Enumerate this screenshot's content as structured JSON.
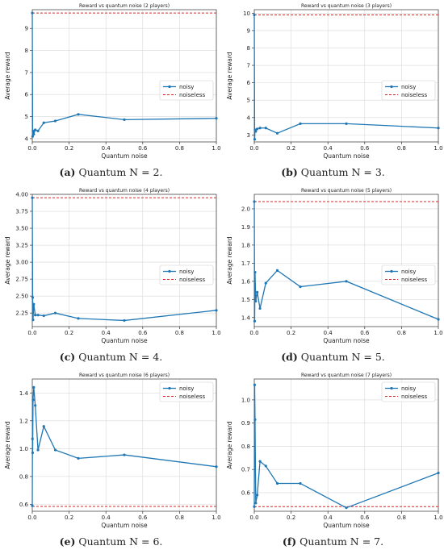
{
  "chart_data": [
    {
      "type": "line",
      "title": "Reward vs quantum noise (2 players)",
      "xlabel": "Quantum noise",
      "ylabel": "Average reward",
      "xlim": [
        0.0,
        1.0
      ],
      "ylim": [
        3.85,
        9.85
      ],
      "xticks": [
        0.0,
        0.2,
        0.4,
        0.6,
        0.8,
        1.0
      ],
      "xtick_labels": [
        "0.0",
        "0.2",
        "0.4",
        "0.6",
        "0.8",
        "1.0"
      ],
      "yticks": [
        4,
        5,
        6,
        7,
        8,
        9
      ],
      "ytick_labels": [
        "4",
        "5",
        "6",
        "7",
        "8",
        "9"
      ],
      "grid": true,
      "legend_position": "right",
      "series": [
        {
          "name": "noisy",
          "color": "#1f77b4",
          "x": [
            0.0,
            0.002,
            0.004,
            0.008,
            0.016,
            0.031,
            0.0625,
            0.125,
            0.25,
            0.5,
            1.0
          ],
          "y": [
            9.7,
            4.1,
            4.35,
            4.2,
            4.4,
            4.35,
            4.72,
            4.8,
            5.1,
            4.86,
            4.92
          ]
        },
        {
          "name": "noiseless",
          "color": "#d62728",
          "dashed": true,
          "hline": 9.7
        }
      ],
      "caption_label": "(a)",
      "caption_text": " Quantum N = 2."
    },
    {
      "type": "line",
      "title": "Reward vs quantum noise (3 players)",
      "xlabel": "Quantum noise",
      "ylabel": "Average reward",
      "xlim": [
        0.0,
        1.0
      ],
      "ylim": [
        2.6,
        10.2
      ],
      "xticks": [
        0.0,
        0.2,
        0.4,
        0.6,
        0.8,
        1.0
      ],
      "xtick_labels": [
        "0.0",
        "0.2",
        "0.4",
        "0.6",
        "0.8",
        "1.0"
      ],
      "yticks": [
        3,
        4,
        5,
        6,
        7,
        8,
        9,
        10
      ],
      "ytick_labels": [
        "3",
        "4",
        "5",
        "6",
        "7",
        "8",
        "9",
        "10"
      ],
      "grid": true,
      "legend_position": "right",
      "series": [
        {
          "name": "noisy",
          "color": "#1f77b4",
          "x": [
            0.0,
            0.002,
            0.004,
            0.008,
            0.016,
            0.031,
            0.0625,
            0.125,
            0.25,
            0.5,
            1.0
          ],
          "y": [
            9.9,
            2.75,
            3.3,
            3.2,
            3.35,
            3.4,
            3.4,
            3.1,
            3.65,
            3.65,
            3.4
          ]
        },
        {
          "name": "noiseless",
          "color": "#d62728",
          "dashed": true,
          "hline": 9.9
        }
      ],
      "caption_label": "(b)",
      "caption_text": " Quantum N = 3."
    },
    {
      "type": "line",
      "title": "Reward vs quantum noise (4 players)",
      "xlabel": "Quantum noise",
      "ylabel": "Average reward",
      "xlim": [
        0.0,
        1.0
      ],
      "ylim": [
        2.05,
        4.0
      ],
      "xticks": [
        0.0,
        0.2,
        0.4,
        0.6,
        0.8,
        1.0
      ],
      "xtick_labels": [
        "0.0",
        "0.2",
        "0.4",
        "0.6",
        "0.8",
        "1.0"
      ],
      "yticks": [
        2.25,
        2.5,
        2.75,
        3.0,
        3.25,
        3.5,
        3.75,
        4.0
      ],
      "ytick_labels": [
        "2.25",
        "2.50",
        "2.75",
        "3.00",
        "3.25",
        "3.50",
        "3.75",
        "4.00"
      ],
      "grid": true,
      "legend_position": "right",
      "series": [
        {
          "name": "noisy",
          "color": "#1f77b4",
          "x": [
            0.0,
            0.002,
            0.004,
            0.008,
            0.016,
            0.031,
            0.0625,
            0.125,
            0.25,
            0.5,
            1.0
          ],
          "y": [
            3.95,
            2.48,
            2.15,
            2.38,
            2.22,
            2.22,
            2.21,
            2.25,
            2.17,
            2.14,
            2.29
          ]
        },
        {
          "name": "noiseless",
          "color": "#d62728",
          "dashed": true,
          "hline": 3.95
        }
      ],
      "caption_label": "(c)",
      "caption_text": " Quantum N = 4."
    },
    {
      "type": "line",
      "title": "Reward vs quantum noise (5 players)",
      "xlabel": "Quantum noise",
      "ylabel": "Average reward",
      "xlim": [
        0.0,
        1.0
      ],
      "ylim": [
        1.35,
        2.08
      ],
      "xticks": [
        0.0,
        0.2,
        0.4,
        0.6,
        0.8,
        1.0
      ],
      "xtick_labels": [
        "0.0",
        "0.2",
        "0.4",
        "0.6",
        "0.8",
        "1.0"
      ],
      "yticks": [
        1.4,
        1.5,
        1.6,
        1.7,
        1.8,
        1.9,
        2.0
      ],
      "ytick_labels": [
        "1.4",
        "1.5",
        "1.6",
        "1.7",
        "1.8",
        "1.9",
        "2.0"
      ],
      "grid": true,
      "legend_position": "right",
      "series": [
        {
          "name": "noisy",
          "color": "#1f77b4",
          "x": [
            0.0,
            0.002,
            0.004,
            0.008,
            0.016,
            0.031,
            0.0625,
            0.125,
            0.25,
            0.5,
            1.0
          ],
          "y": [
            2.04,
            1.38,
            1.65,
            1.49,
            1.54,
            1.45,
            1.59,
            1.66,
            1.57,
            1.6,
            1.39
          ]
        },
        {
          "name": "noiseless",
          "color": "#d62728",
          "dashed": true,
          "hline": 2.04
        }
      ],
      "caption_label": "(d)",
      "caption_text": " Quantum N = 5."
    },
    {
      "type": "line",
      "title": "Reward vs quantum noise (6 players)",
      "xlabel": "Quantum noise",
      "ylabel": "Average reward",
      "xlim": [
        0.0,
        1.0
      ],
      "ylim": [
        0.55,
        1.5
      ],
      "xticks": [
        0.0,
        0.2,
        0.4,
        0.6,
        0.8,
        1.0
      ],
      "xtick_labels": [
        "0.0",
        "0.2",
        "0.4",
        "0.6",
        "0.8",
        "1.0"
      ],
      "yticks": [
        0.6,
        0.8,
        1.0,
        1.2,
        1.4
      ],
      "ytick_labels": [
        "0.6",
        "0.8",
        "1.0",
        "1.2",
        "1.4"
      ],
      "grid": true,
      "legend_position": "top-right",
      "series": [
        {
          "name": "noisy",
          "color": "#1f77b4",
          "x": [
            0.0,
            0.001,
            0.002,
            0.004,
            0.008,
            0.016,
            0.031,
            0.0625,
            0.125,
            0.25,
            0.5,
            1.0
          ],
          "y": [
            0.59,
            1.07,
            0.97,
            1.35,
            1.44,
            1.31,
            0.99,
            1.16,
            0.99,
            0.93,
            0.955,
            0.87
          ]
        },
        {
          "name": "noiseless",
          "color": "#d62728",
          "dashed": true,
          "hline": 0.585
        }
      ],
      "caption_label": "(e)",
      "caption_text": " Quantum N = 6."
    },
    {
      "type": "line",
      "title": "Reward vs quantum noise (7 players)",
      "xlabel": "Quantum noise",
      "ylabel": "Average reward",
      "xlim": [
        0.0,
        1.0
      ],
      "ylim": [
        0.52,
        1.09
      ],
      "xticks": [
        0.0,
        0.2,
        0.4,
        0.6,
        0.8,
        1.0
      ],
      "xtick_labels": [
        "0.0",
        "0.2",
        "0.4",
        "0.6",
        "0.8",
        "1.0"
      ],
      "yticks": [
        0.6,
        0.7,
        0.8,
        0.9,
        1.0
      ],
      "ytick_labels": [
        "0.6",
        "0.7",
        "0.8",
        "0.9",
        "1.0"
      ],
      "grid": true,
      "legend_position": "top-right",
      "series": [
        {
          "name": "noisy",
          "color": "#1f77b4",
          "x": [
            0.0,
            0.002,
            0.004,
            0.008,
            0.016,
            0.031,
            0.0625,
            0.125,
            0.25,
            0.5,
            1.0
          ],
          "y": [
            0.54,
            1.065,
            0.915,
            0.555,
            0.59,
            0.735,
            0.715,
            0.64,
            0.64,
            0.535,
            0.685
          ]
        },
        {
          "name": "noiseless",
          "color": "#d62728",
          "dashed": true,
          "hline": 0.54
        }
      ],
      "caption_label": "(f)",
      "caption_text": " Quantum N = 7."
    }
  ]
}
